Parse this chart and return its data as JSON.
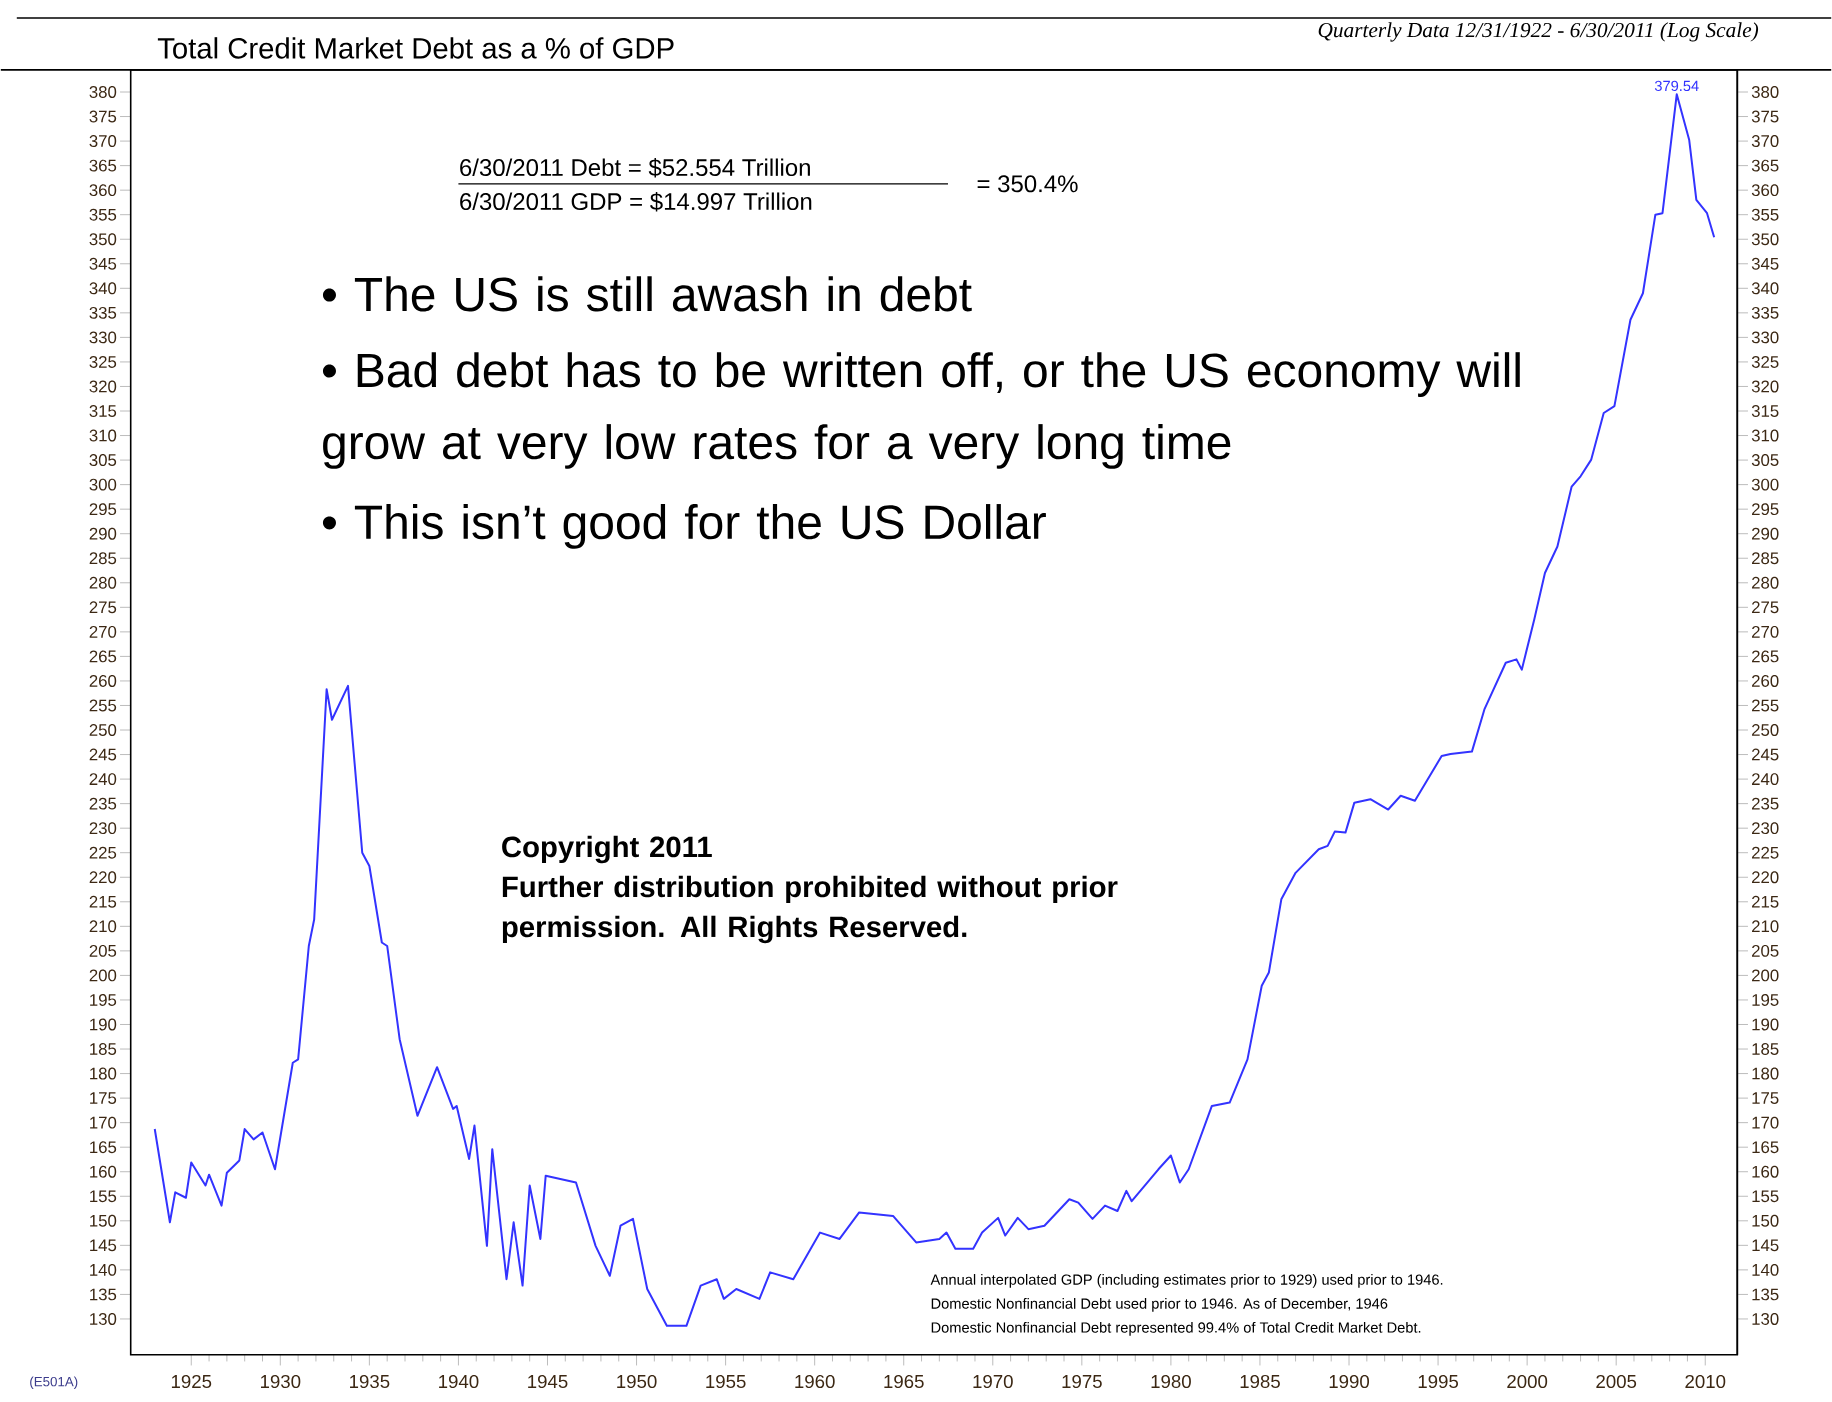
{
  "chart_data": {
    "type": "line",
    "title": "Total Credit Market Debt as a % of GDP",
    "subtitle": "Quarterly Data 12/31/1922 - 6/30/2011 (Log Scale)",
    "x": [
      1922.95,
      1923.8,
      1924.1,
      1924.7,
      1925.0,
      1925.8,
      1926.0,
      1926.7,
      1927.0,
      1927.7,
      1928.0,
      1928.5,
      1929.0,
      1929.7,
      1930.7,
      1931.0,
      1931.6,
      1931.9,
      1932.6,
      1932.9,
      1933.8,
      1934.6,
      1935.0,
      1935.7,
      1936.0,
      1936.7,
      1937.7,
      1938.8,
      1939.7,
      1939.9,
      1940.6,
      1940.9,
      1941.6,
      1941.9,
      1942.7,
      1943.1,
      1943.6,
      1944.0,
      1944.6,
      1944.9,
      1946.6,
      1947.7,
      1948.5,
      1949.1,
      1949.8,
      1950.6,
      1951.7,
      1952.8,
      1953.6,
      1954.5,
      1954.9,
      1955.6,
      1956.9,
      1957.5,
      1958.8,
      1960.3,
      1961.4,
      1962.5,
      1964.4,
      1965.7,
      1967.0,
      1967.4,
      1967.9,
      1968.9,
      1969.4,
      1970.3,
      1970.7,
      1971.4,
      1972.0,
      1972.9,
      1974.3,
      1974.8,
      1975.6,
      1976.3,
      1977.0,
      1977.5,
      1977.8,
      1979.3,
      1980.0,
      1980.5,
      1981.0,
      1982.3,
      1983.3,
      1984.3,
      1985.1,
      1985.5,
      1986.2,
      1987.0,
      1988.3,
      1988.8,
      1989.2,
      1989.8,
      1990.3,
      1991.2,
      1992.2,
      1992.9,
      1993.7,
      1995.2,
      1995.7,
      1996.9,
      1997.6,
      1998.8,
      1999.4,
      1999.7,
      2000.4,
      2001.0,
      2001.7,
      2002.5,
      2003.0,
      2003.6,
      2004.3,
      2004.9,
      2005.8,
      2006.5,
      2007.2,
      2007.6,
      2008.4,
      2009.1,
      2009.5,
      2010.1,
      2010.5
    ],
    "series": [
      {
        "color": "#3333ff",
        "values": [
          168.7,
          149.7,
          155.8,
          154.7,
          161.9,
          157.2,
          159.4,
          153.1,
          159.8,
          162.3,
          168.7,
          166.6,
          168.0,
          160.5,
          182.2,
          182.9,
          206.0,
          211.4,
          258.3,
          252.1,
          259.0,
          225.0,
          222.3,
          206.7,
          206.0,
          187.0,
          171.4,
          181.3,
          172.8,
          173.4,
          162.6,
          169.4,
          144.9,
          164.6,
          138.1,
          149.7,
          136.8,
          157.2,
          146.3,
          159.2,
          157.8,
          144.9,
          138.8,
          149.0,
          150.4,
          136.1,
          128.6,
          128.6,
          136.8,
          138.1,
          134.1,
          136.1,
          134.1,
          139.5,
          138.1,
          147.6,
          146.3,
          151.7,
          151.0,
          145.6,
          146.3,
          147.6,
          144.3,
          144.3,
          147.6,
          150.6,
          147.0,
          150.6,
          148.3,
          149.0,
          154.4,
          153.7,
          150.4,
          153.1,
          152.0,
          156.1,
          154.0,
          160.5,
          163.3,
          157.8,
          160.5,
          173.4,
          174.1,
          182.9,
          197.9,
          200.6,
          215.5,
          220.9,
          225.7,
          226.4,
          229.3,
          229.1,
          235.2,
          235.9,
          233.8,
          236.6,
          235.6,
          244.7,
          245.1,
          245.6,
          254.2,
          263.7,
          264.4,
          262.3,
          272.5,
          282.0,
          287.4,
          299.6,
          301.7,
          305.1,
          314.6,
          316.0,
          333.6,
          339.0,
          355.0,
          355.3,
          379.54,
          370.2,
          358.0,
          355.3,
          350.4
        ]
      }
    ],
    "xlim": [
      1921.6,
      2011.8
    ],
    "ylim": [
      122.7,
      384.5
    ],
    "y2lim": [
      122.7,
      384.5
    ],
    "xticks": [
      1925,
      1930,
      1935,
      1940,
      1945,
      1950,
      1955,
      1960,
      1965,
      1970,
      1975,
      1980,
      1985,
      1990,
      1995,
      2000,
      2005,
      2010
    ],
    "yticks": [
      130,
      135,
      140,
      145,
      150,
      155,
      160,
      165,
      170,
      175,
      180,
      185,
      190,
      195,
      200,
      205,
      210,
      215,
      220,
      225,
      230,
      235,
      240,
      245,
      250,
      255,
      260,
      265,
      270,
      275,
      280,
      285,
      290,
      295,
      300,
      305,
      310,
      315,
      320,
      325,
      330,
      335,
      340,
      345,
      350,
      355,
      360,
      365,
      370,
      375,
      380
    ],
    "y2ticks": [
      130,
      135,
      140,
      145,
      150,
      155,
      160,
      165,
      170,
      175,
      180,
      185,
      190,
      195,
      200,
      205,
      210,
      215,
      220,
      225,
      230,
      235,
      240,
      245,
      250,
      255,
      260,
      265,
      270,
      275,
      280,
      285,
      290,
      295,
      300,
      305,
      310,
      315,
      320,
      325,
      330,
      335,
      340,
      345,
      350,
      355,
      360,
      365,
      370,
      375,
      380
    ],
    "annotations": [
      "6/30/2011  Debt  =  $52.554 Trillion",
      "6/30/2011  GDP  =  $14.997 Trillion",
      "= 350.4%",
      "• The US is still awash in debt",
      "• Bad debt has to be written off, or the US economy will grow at very low rates for a very long time",
      "• This isn’t good for the US Dollar",
      "Copyright 2011",
      "Further distribution prohibited without prior permission. All Rights Reserved.",
      "Annual interpolated GDP (including estimates prior to 1929) used prior to 1946.",
      "Domestic Nonfinancial Debt used prior to 1946. As of December, 1946",
      "Domestic Nonfinancial Debt represented 99.4% of Total Credit Market Debt.",
      "(E501A)",
      {
        "text": "379.54",
        "x": 2008.4,
        "y": 379.54
      }
    ]
  }
}
